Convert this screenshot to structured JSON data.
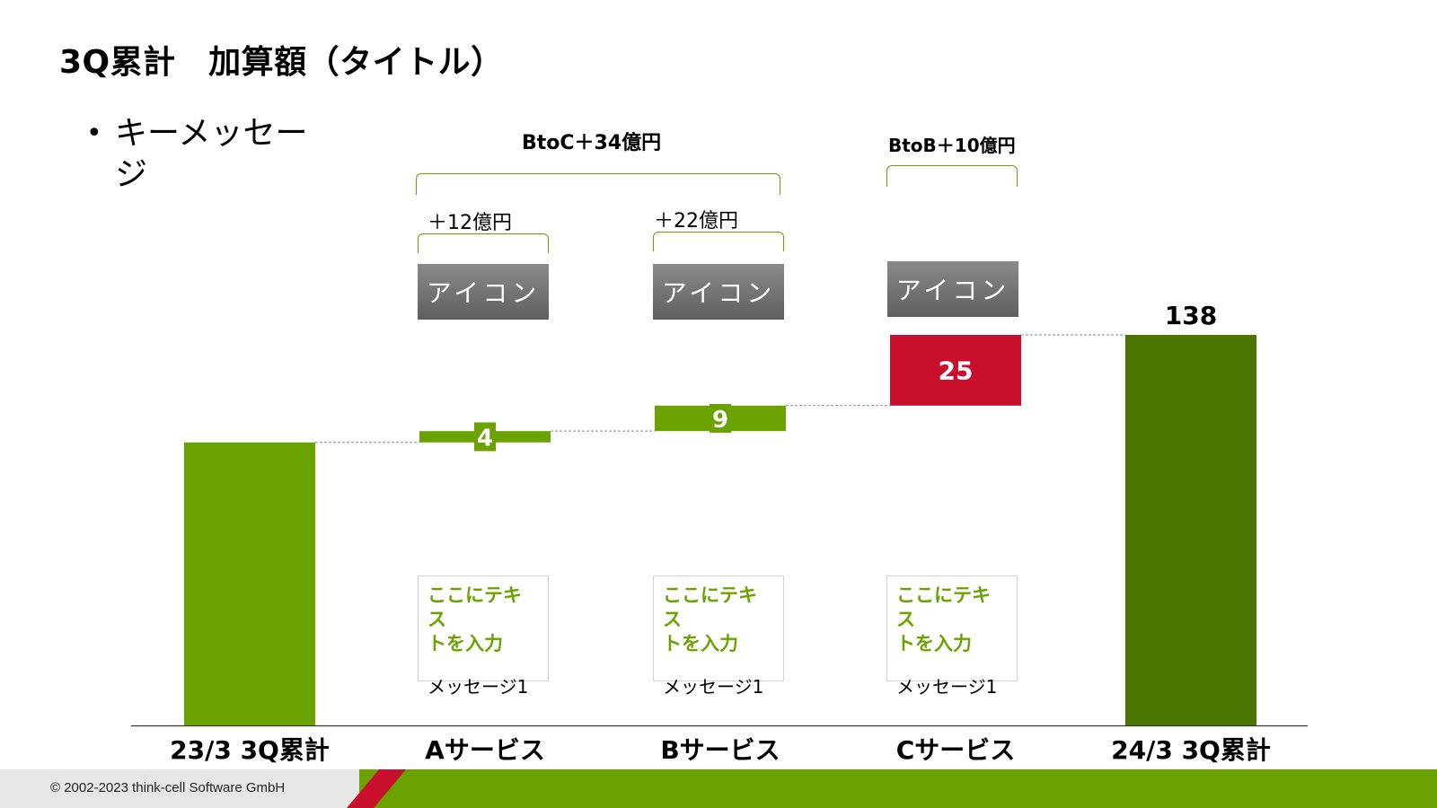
{
  "title": "3Q累計　加算額（タイトル）",
  "key_message": "キーメッセージ",
  "group_labels": {
    "btoc": "BtoC＋34億円",
    "btob": "BtoB＋10億円"
  },
  "sub_labels": {
    "a": "＋12億円",
    "b": "＋22億円"
  },
  "icon_label": "アイコン",
  "notes": [
    {
      "highlight_1": "ここにテキス",
      "highlight_2": "トを入力",
      "message": "メッセージ1"
    },
    {
      "highlight_1": "ここにテキス",
      "highlight_2": "トを入力",
      "message": "メッセージ1"
    },
    {
      "highlight_1": "ここにテキス",
      "highlight_2": "トを入力",
      "message": "メッセージ1"
    }
  ],
  "footer": {
    "copyright": "© 2002-2023 think-cell Software GmbH"
  },
  "colors": {
    "green": "#6aa300",
    "dark_green": "#4a7500",
    "red": "#c8102e",
    "icon_gray": "#6e6e6e"
  },
  "chart_data": {
    "type": "bar",
    "subtype": "waterfall",
    "categories": [
      "23/3 3Q累計",
      "Aサービス",
      "Bサービス",
      "Cサービス",
      "24/3 3Q累計"
    ],
    "steps": [
      {
        "kind": "total",
        "base": 0,
        "value": 100,
        "label": "",
        "color": "#6aa300"
      },
      {
        "kind": "delta",
        "base": 100,
        "value": 4,
        "label": "4",
        "color": "#6aa300"
      },
      {
        "kind": "delta",
        "base": 104,
        "value": 9,
        "label": "9",
        "color": "#6aa300"
      },
      {
        "kind": "delta",
        "base": 113,
        "value": 25,
        "label": "25",
        "color": "#c8102e"
      },
      {
        "kind": "total",
        "base": 0,
        "value": 138,
        "label": "138",
        "color": "#4a7500"
      }
    ],
    "ylim": [
      0,
      138
    ],
    "grid": false,
    "connectors": true
  }
}
